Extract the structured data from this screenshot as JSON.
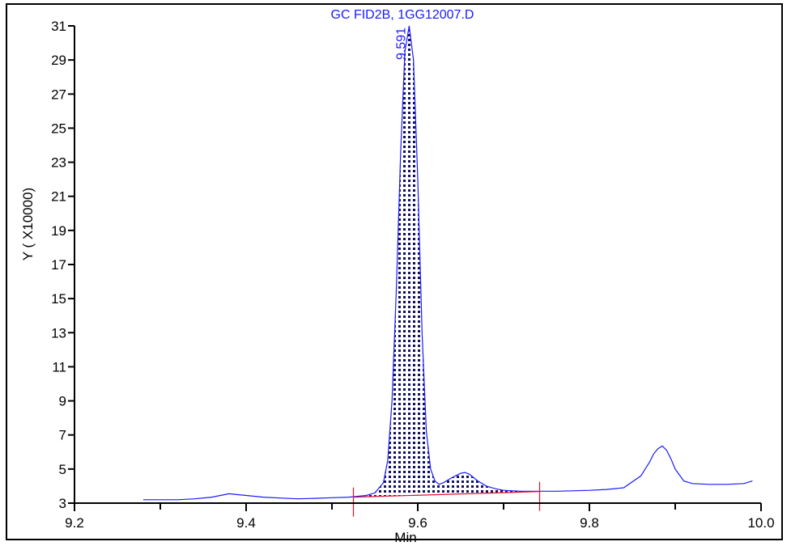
{
  "chart_data": {
    "type": "line",
    "title": "GC FID2B, 1GG12007.D",
    "xlabel": "Min",
    "ylabel": "Y ( X10000)",
    "xlim": [
      9.2,
      10.0
    ],
    "ylim": [
      3,
      31
    ],
    "x_ticks": [
      9.2,
      9.4,
      9.6,
      9.8,
      10.0
    ],
    "x_tick_labels": [
      "9.2",
      "9.4",
      "9.6",
      "9.8",
      "10.0"
    ],
    "y_ticks": [
      3,
      5,
      7,
      9,
      11,
      13,
      15,
      17,
      19,
      21,
      23,
      25,
      27,
      29,
      31
    ],
    "y_tick_labels": [
      "3",
      "5",
      "7",
      "9",
      "11",
      "13",
      "15",
      "17",
      "19",
      "21",
      "23",
      "25",
      "27",
      "29",
      "31"
    ],
    "grid": false,
    "series_color": "#1a1aff",
    "baseline_color": "#e01030",
    "series": [
      {
        "x": [
          9.28,
          9.3,
          9.32,
          9.34,
          9.36,
          9.37,
          9.38,
          9.39,
          9.4,
          9.42,
          9.44,
          9.46,
          9.48,
          9.5,
          9.52,
          9.54,
          9.55,
          9.56,
          9.565,
          9.57,
          9.575,
          9.58,
          9.585,
          9.59,
          9.595,
          9.6,
          9.605,
          9.61,
          9.615,
          9.62,
          9.625,
          9.63,
          9.64,
          9.65,
          9.655,
          9.66,
          9.67,
          9.68,
          9.69,
          9.7,
          9.72,
          9.74,
          9.76,
          9.78,
          9.8,
          9.82,
          9.84,
          9.86,
          9.87,
          9.875,
          9.88,
          9.885,
          9.89,
          9.895,
          9.9,
          9.91,
          9.92,
          9.94,
          9.96,
          9.98,
          9.99
        ],
        "y": [
          3.2,
          3.2,
          3.2,
          3.25,
          3.35,
          3.45,
          3.55,
          3.5,
          3.45,
          3.35,
          3.3,
          3.25,
          3.28,
          3.32,
          3.35,
          3.45,
          3.6,
          4.2,
          5.5,
          9.0,
          15.5,
          23.5,
          29.5,
          31.0,
          29.0,
          22.0,
          13.0,
          7.2,
          5.0,
          4.3,
          4.1,
          4.2,
          4.5,
          4.75,
          4.8,
          4.7,
          4.3,
          4.0,
          3.85,
          3.75,
          3.7,
          3.7,
          3.7,
          3.72,
          3.75,
          3.8,
          3.9,
          4.6,
          5.4,
          5.9,
          6.2,
          6.35,
          6.1,
          5.6,
          5.0,
          4.3,
          4.15,
          4.1,
          4.1,
          4.15,
          4.3
        ]
      }
    ],
    "peak_labels": [
      {
        "x": 9.591,
        "y": 31.0,
        "label": "9.591"
      }
    ],
    "integration": {
      "start_x": 9.525,
      "end_x": 9.742,
      "start_y": 3.35,
      "end_y": 3.68,
      "shaded_start_x": 9.54,
      "shaded_end_x": 9.742
    }
  }
}
